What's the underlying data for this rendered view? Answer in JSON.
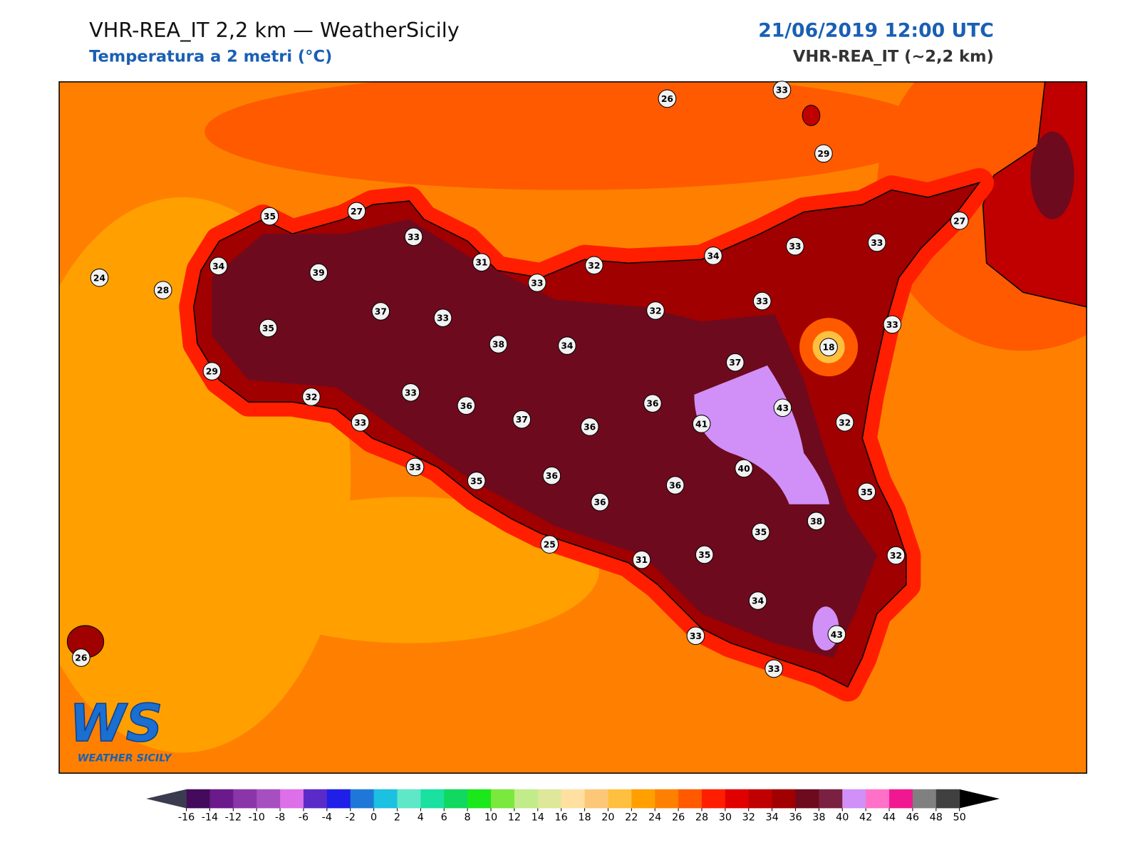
{
  "header": {
    "title": "VHR-REA_IT 2,2 km — WeatherSicily",
    "subtitle": "Temperatura a 2 metri (°C)",
    "datetime": "21/06/2019 12:00 UTC",
    "model": "VHR-REA_IT (~2,2 km)"
  },
  "stations": [
    26,
    33,
    29,
    35,
    27,
    33,
    34,
    39,
    31,
    24,
    28,
    33,
    32,
    34,
    33,
    33,
    27,
    37,
    33,
    35,
    32,
    33,
    33,
    18,
    38,
    34,
    29,
    37,
    32,
    33,
    36,
    36,
    43,
    33,
    37,
    36,
    41,
    32,
    33,
    40,
    35,
    36,
    36,
    35,
    36,
    38,
    35,
    25,
    35,
    32,
    31,
    34,
    33,
    43,
    26,
    33
  ],
  "colorbar": {
    "ticks": [
      -16,
      -14,
      -12,
      -10,
      -8,
      -6,
      -4,
      -2,
      0,
      2,
      4,
      6,
      8,
      10,
      12,
      14,
      16,
      18,
      20,
      22,
      24,
      26,
      28,
      30,
      32,
      34,
      36,
      38,
      40,
      42,
      44,
      46,
      48,
      50
    ],
    "colors": [
      "#440a5c",
      "#6a1a8a",
      "#8a35a8",
      "#a64fc0",
      "#dd6fe8",
      "#5a2bc8",
      "#1f1fe8",
      "#1f78d8",
      "#1cc0e0",
      "#5ee8c8",
      "#1ae0a0",
      "#10d860",
      "#1be81b",
      "#7ae83c",
      "#c2ec8a",
      "#dfe89a",
      "#ffe0a0",
      "#fcc878",
      "#ffc040",
      "#ffa000",
      "#ff8000",
      "#ff5a00",
      "#ff1e00",
      "#e00000",
      "#c00000",
      "#a00000",
      "#6e0a1e",
      "#7a2040",
      "#d090f8",
      "#ff70c8",
      "#f01890",
      "#808080",
      "#404040"
    ],
    "under_color": "#3b3b4f",
    "over_color": "#000000"
  },
  "logo": {
    "mark": "WS",
    "text": "WEATHER SICILY"
  }
}
